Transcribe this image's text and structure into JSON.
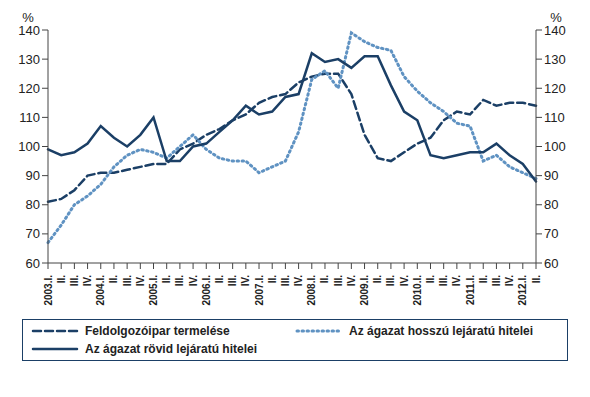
{
  "chart_data": {
    "type": "line",
    "y_label": "%",
    "y2_label": "%",
    "categories": [
      "2003.I.",
      "II.",
      "III.",
      "IV.",
      "2004.I.",
      "II.",
      "III.",
      "IV.",
      "2005.I.",
      "II.",
      "III.",
      "IV.",
      "2006.I.",
      "II.",
      "III.",
      "IV.",
      "2007.I.",
      "II.",
      "III.",
      "IV.",
      "2008.I.",
      "II.",
      "III.",
      "IV.",
      "2009.I.",
      "II.",
      "III.",
      "IV.",
      "2010.I.",
      "II.",
      "III.",
      "IV.",
      "2011.I.",
      "II.",
      "III.",
      "IV.",
      "2012.I.",
      "II."
    ],
    "series": [
      {
        "name": "Feldolgozóipar termelése",
        "color": "#1b3f66",
        "line_style": "dashed",
        "values": [
          81,
          82,
          85,
          90,
          91,
          91,
          92,
          93,
          94,
          94,
          99,
          101,
          104,
          106,
          109,
          111,
          115,
          117,
          118,
          122,
          124,
          125,
          125,
          118,
          104,
          96,
          95,
          98,
          101,
          103,
          109,
          112,
          111,
          116,
          114,
          115,
          115,
          114
        ]
      },
      {
        "name": "Az ágazat hosszú lejáratú hitelei",
        "color": "#5f92c2",
        "line_style": "dotted",
        "values": [
          67,
          73,
          80,
          83,
          87,
          93,
          97,
          99,
          98,
          96,
          100,
          104,
          99,
          96,
          95,
          95,
          91,
          93,
          95,
          105,
          123,
          126,
          120,
          139,
          136,
          134,
          133,
          124,
          119,
          115,
          112,
          108,
          107,
          95,
          97,
          93,
          91,
          89
        ]
      },
      {
        "name": "Az ágazat rövid lejáratú hitelei",
        "color": "#1b3f66",
        "line_style": "solid",
        "values": [
          99,
          97,
          98,
          101,
          107,
          103,
          100,
          104,
          110,
          95,
          95,
          100,
          101,
          105,
          109,
          114,
          111,
          112,
          117,
          118,
          132,
          129,
          130,
          127,
          131,
          131,
          121,
          112,
          109,
          97,
          96,
          97,
          98,
          98,
          101,
          97,
          94,
          88
        ]
      }
    ],
    "ylim": [
      60,
      140
    ],
    "yticks": [
      60,
      70,
      80,
      90,
      100,
      110,
      120,
      130,
      140
    ],
    "y2lim": [
      60,
      140
    ],
    "y2ticks": [
      60,
      70,
      80,
      90,
      100,
      110,
      120,
      130,
      140
    ],
    "grid": false,
    "legend": "bottom"
  }
}
